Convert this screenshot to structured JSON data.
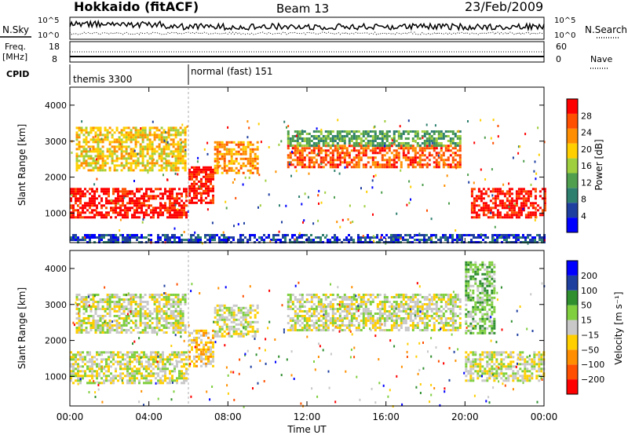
{
  "header": {
    "station": "Hokkaido (fitACF)",
    "beam": "Beam 13",
    "date": "23/Feb/2009"
  },
  "summary": {
    "nsky_label": "N.Sky",
    "nsearch_label": "N.Search",
    "noise_ticks": [
      "10^5",
      "10^0"
    ],
    "freq_label_1": "Freq.",
    "freq_label_2": "[MHz]",
    "freq_ticks": [
      "18",
      "8"
    ],
    "nave_label": "Nave",
    "nave_ticks": [
      "60",
      "0"
    ],
    "cpid_label": "CPID",
    "cpid_segments": [
      {
        "label": "themis 3300",
        "start_hour": 0.0
      },
      {
        "label": "normal (fast) 151",
        "start_hour": 6.0
      }
    ]
  },
  "colors": {
    "power": [
      "#0000ff",
      "#1f3fa0",
      "#2f7f6f",
      "#4f9f4f",
      "#9fcf3f",
      "#ffcf00",
      "#ff8f00",
      "#ff4f00",
      "#ff0000"
    ],
    "velocity": [
      "#0000ff",
      "#1f3f9f",
      "#2f8f2f",
      "#7fcf3f",
      "#c8c8c8",
      "#ffcf00",
      "#ff8f00",
      "#ff4f00",
      "#ff0000"
    ]
  },
  "chart_data": [
    {
      "type": "heatmap",
      "panel": "power",
      "ylabel": "Slant Range [km]",
      "yticks": [
        "1000",
        "2000",
        "3000",
        "4000"
      ],
      "ylim": [
        180,
        4500
      ],
      "colorbar_label": "Power [dB]",
      "colorbar_ticks": [
        "4",
        "8",
        "12",
        "16",
        "20",
        "24",
        "28"
      ],
      "bands": [
        {
          "t0": 0.0,
          "t1": 5.9,
          "r0": 900,
          "r1": 1700,
          "level": 8
        },
        {
          "t0": 0.3,
          "t1": 5.8,
          "r0": 2200,
          "r1": 3400,
          "level": 5
        },
        {
          "t0": 6.0,
          "t1": 7.2,
          "r0": 1300,
          "r1": 2300,
          "level": 8
        },
        {
          "t0": 7.3,
          "t1": 9.5,
          "r0": 2100,
          "r1": 3000,
          "level": 6
        },
        {
          "t0": 11.0,
          "t1": 19.8,
          "r0": 2300,
          "r1": 2900,
          "level": 7
        },
        {
          "t0": 11.0,
          "t1": 19.8,
          "r0": 2900,
          "r1": 3300,
          "level": 3
        },
        {
          "t0": 20.3,
          "t1": 24.0,
          "r0": 900,
          "r1": 1700,
          "level": 8
        },
        {
          "t0": 0.0,
          "t1": 24.0,
          "r0": 180,
          "r1": 420,
          "level": 1
        }
      ]
    },
    {
      "type": "heatmap",
      "panel": "velocity",
      "ylabel": "Slant Range [km]",
      "yticks": [
        "1000",
        "2000",
        "3000",
        "4000"
      ],
      "ylim": [
        180,
        4500
      ],
      "colorbar_label": "Velocity [m s⁻¹]",
      "colorbar_ticks": [
        "200",
        "100",
        "50",
        "15",
        "−15",
        "−50",
        "−100",
        "−200"
      ],
      "bands": [
        {
          "t0": 0.0,
          "t1": 5.9,
          "r0": 800,
          "r1": 1700,
          "level": 4
        },
        {
          "t0": 0.3,
          "t1": 5.8,
          "r0": 2200,
          "r1": 3300,
          "level": 4
        },
        {
          "t0": 6.0,
          "t1": 7.2,
          "r0": 1300,
          "r1": 2300,
          "level": 5
        },
        {
          "t0": 7.3,
          "t1": 9.5,
          "r0": 2100,
          "r1": 3000,
          "level": 4
        },
        {
          "t0": 11.0,
          "t1": 19.8,
          "r0": 2300,
          "r1": 3300,
          "level": 4
        },
        {
          "t0": 20.0,
          "t1": 24.0,
          "r0": 900,
          "r1": 1700,
          "level": 4
        },
        {
          "t0": 20.0,
          "t1": 21.5,
          "r0": 2200,
          "r1": 4200,
          "level": 3
        }
      ]
    }
  ],
  "xaxis": {
    "label": "Time UT",
    "ticks": [
      "00:00",
      "04:00",
      "08:00",
      "12:00",
      "16:00",
      "20:00",
      "00:00"
    ]
  }
}
